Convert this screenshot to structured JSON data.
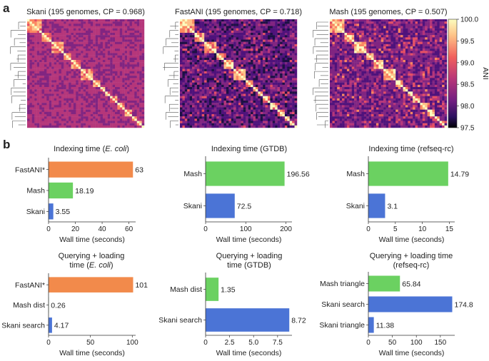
{
  "panel_labels": {
    "a": "a",
    "b": "b"
  },
  "colors": {
    "fastani": "#f28a4b",
    "mash": "#6bd161",
    "skani": "#4b74d6",
    "axis": "#333333"
  },
  "chart_data": [
    {
      "type": "heatmap",
      "title": "Skani (195 genomes, CP = 0.968)",
      "n_genomes": 195,
      "cp": 0.968
    },
    {
      "type": "heatmap",
      "title": "FastANI (195 genomes, CP = 0.718)",
      "n_genomes": 195,
      "cp": 0.718
    },
    {
      "type": "heatmap",
      "title": "Mash (195 genomes, CP = 0.507)",
      "n_genomes": 195,
      "cp": 0.507
    },
    {
      "type": "colorbar",
      "label": "ANI",
      "ticks": [
        "100.0",
        "99.5",
        "99.0",
        "98.5",
        "98.0",
        "97.5"
      ],
      "range": [
        97.5,
        100.0
      ]
    },
    {
      "type": "bar",
      "orientation": "horizontal",
      "title": "Indexing time (",
      "title_italic": "E. coli",
      "title_end": ")",
      "categories": [
        "FastANI*",
        "Mash",
        "Skani"
      ],
      "values": [
        63,
        18.19,
        3.55
      ],
      "value_labels": [
        "63",
        "18.19",
        "3.55"
      ],
      "bar_colors": [
        "fastani",
        "mash",
        "skani"
      ],
      "xlim": [
        0,
        65
      ],
      "xticks": [
        0,
        20,
        40,
        60
      ],
      "xtick_labels": [
        "0",
        "20",
        "40",
        "60"
      ],
      "xlabel": "Wall time (seconds)"
    },
    {
      "type": "bar",
      "orientation": "horizontal",
      "title": "Indexing time (GTDB)",
      "categories": [
        "Mash",
        "Skani"
      ],
      "values": [
        196.56,
        72.5
      ],
      "value_labels": [
        "196.56",
        "72.5"
      ],
      "bar_colors": [
        "mash",
        "skani"
      ],
      "xlim": [
        0,
        215
      ],
      "xticks": [
        0,
        100,
        200
      ],
      "xtick_labels": [
        "0",
        "100",
        "200"
      ],
      "xlabel": "Wall time (seconds)"
    },
    {
      "type": "bar",
      "orientation": "horizontal",
      "title": "Indexing time (refseq-rc)",
      "categories": [
        "Mash",
        "Skani"
      ],
      "values": [
        14.79,
        3.1
      ],
      "value_labels": [
        "14.79",
        "3.1"
      ],
      "bar_colors": [
        "mash",
        "skani"
      ],
      "xlim": [
        0,
        16
      ],
      "xticks": [
        0,
        5,
        10,
        15
      ],
      "xtick_labels": [
        "0",
        "5",
        "10",
        "15"
      ],
      "xlabel": "Wall time (seconds)"
    },
    {
      "type": "bar",
      "orientation": "horizontal",
      "title": "Querying + loading",
      "title_line2": "time (",
      "title_italic": "E. coli",
      "title_end": ")",
      "categories": [
        "FastANI*",
        "Mash dist",
        "Skani search"
      ],
      "values": [
        101,
        0.26,
        4.17
      ],
      "value_labels": [
        "101",
        "0.26",
        "4.17"
      ],
      "bar_colors": [
        "fastani",
        "mash",
        "skani"
      ],
      "xlim": [
        0,
        104
      ],
      "xticks": [
        0,
        50,
        100
      ],
      "xtick_labels": [
        "0",
        "50",
        "100"
      ],
      "xlabel": "Wall time (seconds)"
    },
    {
      "type": "bar",
      "orientation": "horizontal",
      "title": "Querying + loading",
      "title_line2": "time (GTDB)",
      "categories": [
        "Mash dist",
        "Skani search"
      ],
      "values": [
        1.35,
        8.72
      ],
      "value_labels": [
        "1.35",
        "8.72"
      ],
      "bar_colors": [
        "mash",
        "skani"
      ],
      "xlim": [
        0,
        9
      ],
      "xticks": [
        0,
        2.5,
        5,
        7.5
      ],
      "xtick_labels": [
        "0",
        "2.5",
        "5.0",
        "7.5"
      ],
      "xlabel": "Wall time (seconds)"
    },
    {
      "type": "bar",
      "orientation": "horizontal",
      "title": "Querying + loading time",
      "title_line2": "(refseq-rc)",
      "categories": [
        "Mash triangle",
        "Skani search",
        "Skani triangle"
      ],
      "values": [
        65.84,
        174.8,
        11.38
      ],
      "value_labels": [
        "65.84",
        "174.8",
        "11.38"
      ],
      "bar_colors": [
        "mash",
        "skani",
        "skani"
      ],
      "xlim": [
        0,
        180
      ],
      "xticks": [
        0,
        50,
        100,
        150
      ],
      "xtick_labels": [
        "0",
        "50",
        "100",
        "150"
      ],
      "xlabel": "Wall time (seconds)"
    }
  ]
}
